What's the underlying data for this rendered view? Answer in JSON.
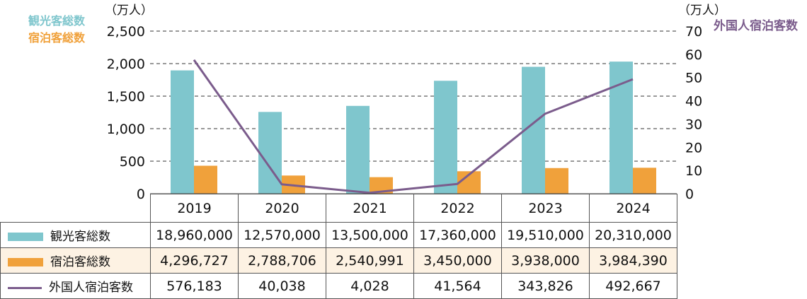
{
  "chart_data": {
    "type": "bar",
    "categories": [
      "2019",
      "2020",
      "2021",
      "2022",
      "2023",
      "2024"
    ],
    "left_axis": {
      "unit": "（万人）",
      "ticks": [
        "2,500",
        "2,000",
        "1,500",
        "1,000",
        "500",
        "0"
      ],
      "ylim": [
        0,
        2500
      ]
    },
    "right_axis": {
      "unit": "（万人）",
      "ticks": [
        "70",
        "60",
        "50",
        "40",
        "30",
        "20",
        "10",
        "0"
      ],
      "ylim": [
        0,
        70
      ]
    },
    "series": [
      {
        "name": "観光客総数",
        "type": "bar",
        "axis": "left",
        "color": "#7fc6cd",
        "values": [
          1896.0,
          1257.0,
          1350.0,
          1736.0,
          1951.0,
          2031.0
        ],
        "table_values": [
          "18,960,000",
          "12,570,000",
          "13,500,000",
          "17,360,000",
          "19,510,000",
          "20,310,000"
        ]
      },
      {
        "name": "宿泊客総数",
        "type": "bar",
        "axis": "left",
        "color": "#f0a13b",
        "values": [
          429.6727,
          278.8706,
          254.0991,
          345.0,
          393.8,
          398.439
        ],
        "table_values": [
          "4,296,727",
          "2,788,706",
          "2,540,991",
          "3,450,000",
          "3,938,000",
          "3,984,390"
        ]
      },
      {
        "name": "外国人宿泊客数",
        "type": "line",
        "axis": "right",
        "color": "#7b5c8c",
        "values": [
          57.6183,
          4.0038,
          0.4028,
          4.1564,
          34.3826,
          49.2667
        ],
        "table_values": [
          "576,183",
          "40,038",
          "4,028",
          "41,564",
          "343,826",
          "492,667"
        ]
      }
    ],
    "grid": "dashed-horizontal",
    "legend_position": "top"
  }
}
